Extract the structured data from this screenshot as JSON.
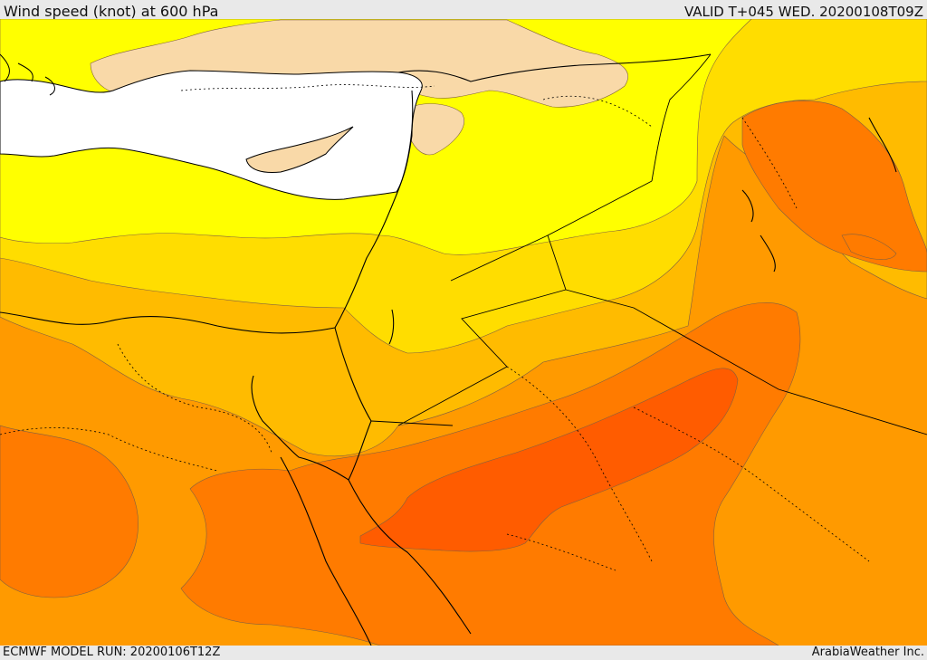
{
  "header": {
    "title": "Wind speed (knot) at 600 hPa",
    "valid": "VALID T+045 WED. 20200108T09Z"
  },
  "footer": {
    "model_run": "ECMWF MODEL RUN: 20200106T12Z",
    "credit": "ArabiaWeather Inc."
  },
  "colors": {
    "sea": "#ffffff",
    "calm": "#f9d9a8",
    "yellow": "#ffff00",
    "gold": "#ffdd00",
    "amber": "#ffbb00",
    "orange": "#ff9a00",
    "dark_orange": "#ff7b00",
    "red_orange": "#ff5c00",
    "border": "#000000"
  }
}
